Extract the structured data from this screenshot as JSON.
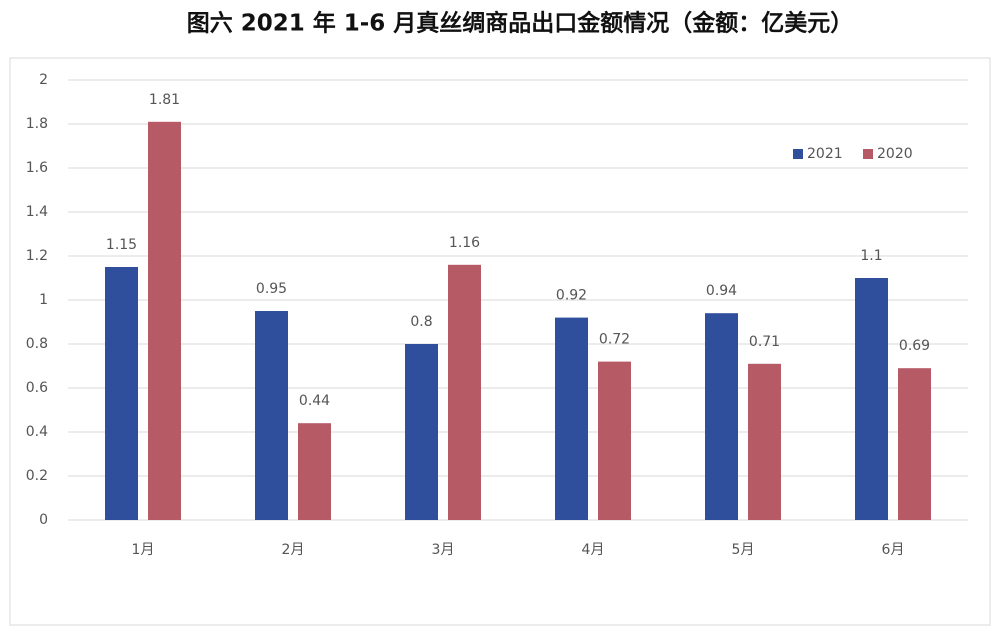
{
  "chart_data": {
    "type": "bar",
    "title": "图六  2021 年 1-6 月真丝绸商品出口金额情况（金额：亿美元）",
    "categories": [
      "1月",
      "2月",
      "3月",
      "4月",
      "5月",
      "6月"
    ],
    "series": [
      {
        "name": "2021",
        "color": "#2f4f9d",
        "values": [
          1.15,
          0.95,
          0.8,
          0.92,
          0.94,
          1.1
        ]
      },
      {
        "name": "2020",
        "color": "#b65a66",
        "values": [
          1.81,
          0.44,
          1.16,
          0.72,
          0.71,
          0.69
        ]
      }
    ],
    "ylim": [
      0,
      2
    ],
    "yticks": [
      0,
      0.2,
      0.4,
      0.6,
      0.8,
      1,
      1.2,
      1.4,
      1.6,
      1.8,
      2
    ],
    "grid": true,
    "legend": "upper right"
  }
}
